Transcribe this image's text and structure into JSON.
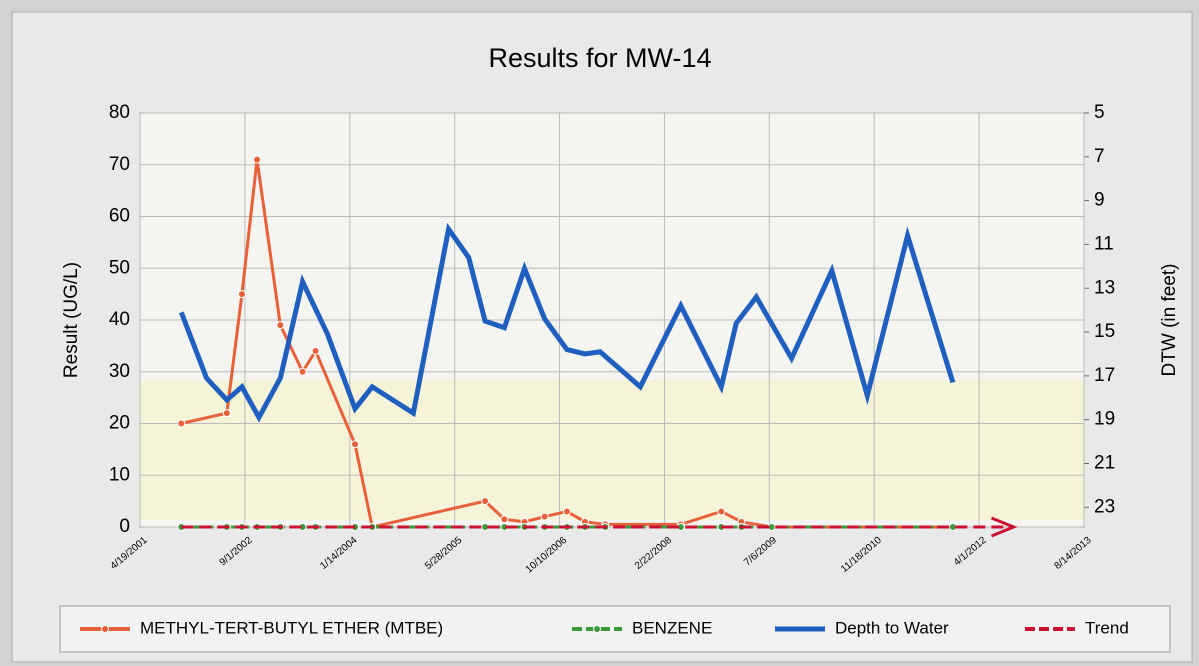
{
  "chart_data": {
    "type": "line",
    "title": "Results for MW-14",
    "ylabel": "Result (UG/L)",
    "y2label": "DTW (in feet)",
    "xlim": [
      "4/19/2001",
      "8/14/2013"
    ],
    "xticks": [
      "4/19/2001",
      "9/1/2002",
      "1/14/2004",
      "5/28/2005",
      "10/10/2006",
      "2/22/2008",
      "7/6/2009",
      "11/18/2010",
      "4/1/2012",
      "8/14/2013"
    ],
    "ylim": [
      0,
      80
    ],
    "yticks": [
      0,
      10,
      20,
      30,
      40,
      50,
      60,
      70,
      80
    ],
    "y2lim": [
      23.9,
      5
    ],
    "y2ticks": [
      5,
      7,
      9,
      11,
      13,
      15,
      17,
      19,
      21,
      23
    ],
    "grid": true,
    "legend": "bottom",
    "series": [
      {
        "name": "METHYL-TERT-BUTYL ETHER (MTBE)",
        "color": "#e8603a",
        "style": "solid-markers",
        "x": [
          "11/2/2001",
          "6/7/2002",
          "8/18/2002",
          "10/29/2002",
          "2/17/2003",
          "6/3/2003",
          "8/4/2003",
          "2/8/2004",
          "4/30/2004",
          "10/20/2005",
          "1/20/2006",
          "4/26/2006",
          "7/31/2006",
          "11/14/2006",
          "2/8/2007",
          "5/16/2007",
          "5/10/2008",
          "11/19/2008",
          "2/23/2009",
          "7/17/2009",
          "11/28/2011"
        ],
        "values": [
          20,
          22,
          45,
          71,
          39,
          30,
          34,
          16,
          0,
          5,
          1.5,
          1,
          2,
          3,
          1,
          0.5,
          0.5,
          3,
          1,
          0,
          0
        ]
      },
      {
        "name": "BENZENE",
        "color": "#3a9a3a",
        "style": "dashed-markers",
        "x": [
          "11/2/2001",
          "6/7/2002",
          "8/18/2002",
          "10/29/2002",
          "2/17/2003",
          "6/3/2003",
          "8/4/2003",
          "2/8/2004",
          "4/30/2004",
          "10/20/2005",
          "1/20/2006",
          "4/26/2006",
          "7/31/2006",
          "11/14/2006",
          "2/8/2007",
          "5/16/2007",
          "5/10/2008",
          "11/19/2008",
          "2/23/2009",
          "7/17/2009",
          "11/28/2011"
        ],
        "values": [
          0,
          0,
          0,
          0,
          0,
          0,
          0,
          0,
          0,
          0,
          0,
          0,
          0,
          0,
          0,
          0,
          0,
          0,
          0,
          0,
          0
        ]
      },
      {
        "name": "Depth to Water",
        "color": "#1f5fbf",
        "style": "thick",
        "axis": "y2",
        "x": [
          "11/2/2001",
          "3/2/2002",
          "6/7/2002",
          "8/18/2002",
          "11/7/2002",
          "2/17/2003",
          "6/3/2003",
          "9/30/2003",
          "2/8/2004",
          "4/30/2004",
          "11/12/2004",
          "4/29/2005",
          "8/3/2005",
          "10/20/2005",
          "1/20/2006",
          "4/26/2006",
          "7/31/2006",
          "11/14/2006",
          "2/8/2007",
          "4/21/2007",
          "10/30/2007",
          "5/10/2008",
          "11/19/2008",
          "1/29/2009",
          "5/5/2009",
          "10/20/2009",
          "4/30/2010",
          "10/16/2010",
          "4/26/2011",
          "11/28/2011"
        ],
        "values": [
          14.1,
          17.1,
          18.1,
          17.5,
          18.9,
          17.1,
          12.7,
          15.1,
          18.5,
          17.5,
          18.7,
          10.3,
          11.6,
          14.5,
          14.8,
          12.1,
          14.4,
          15.8,
          16.0,
          15.9,
          17.5,
          13.8,
          17.5,
          14.6,
          13.4,
          16.2,
          12.2,
          17.9,
          10.6,
          17.3
        ]
      },
      {
        "name": "Trend",
        "color": "#cc1133",
        "style": "dashed-arrow",
        "x": [
          "11/2/2001",
          "9/12/2012"
        ],
        "values": [
          0,
          0
        ]
      }
    ]
  }
}
